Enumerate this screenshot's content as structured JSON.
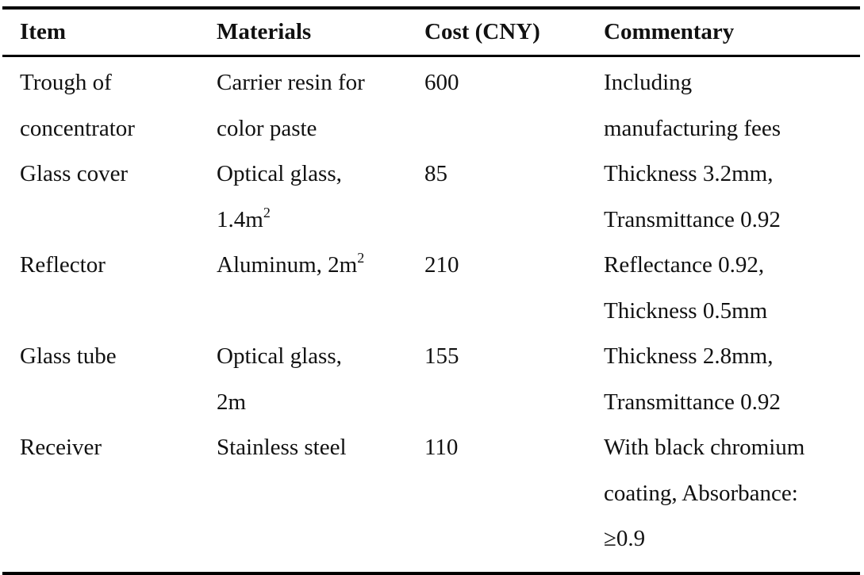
{
  "table": {
    "headers": [
      "Item",
      "Materials",
      "Cost (CNY)",
      "Commentary"
    ],
    "rows": [
      {
        "item": [
          "Trough of",
          "concentrator"
        ],
        "materials": [
          "Carrier resin for",
          "color paste"
        ],
        "cost": "600",
        "commentary": [
          "Including",
          "manufacturing fees"
        ]
      },
      {
        "item": [
          "Glass cover"
        ],
        "materials": [
          "Optical glass,",
          "1.4m"
        ],
        "materials_sup": "2",
        "cost": "85",
        "commentary": [
          "Thickness 3.2mm,",
          "Transmittance 0.92"
        ]
      },
      {
        "item": [
          "Reflector"
        ],
        "materials": [
          "Aluminum, 2m"
        ],
        "materials_sup": "2",
        "cost": "210",
        "commentary": [
          "Reflectance 0.92,",
          "Thickness 0.5mm"
        ]
      },
      {
        "item": [
          "Glass tube"
        ],
        "materials": [
          "Optical glass,",
          "2m"
        ],
        "cost": "155",
        "commentary": [
          "Thickness 2.8mm,",
          "Transmittance 0.92"
        ]
      },
      {
        "item": [
          "Receiver"
        ],
        "materials": [
          "Stainless steel"
        ],
        "cost": "110",
        "commentary": [
          "With black chromium",
          "coating, Absorbance:",
          "≥0.9"
        ]
      }
    ]
  }
}
